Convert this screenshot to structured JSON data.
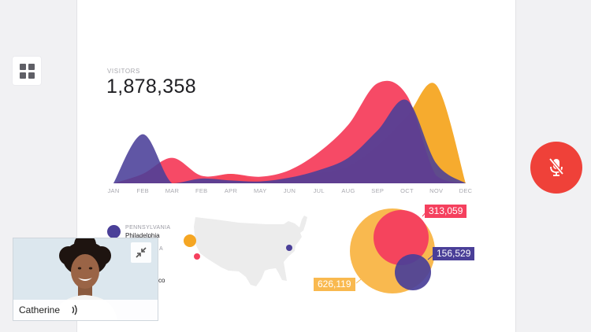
{
  "stats": {
    "label": "VISITORS",
    "value": "1,878,358"
  },
  "chart_data": {
    "type": "area",
    "categories": [
      "JAN",
      "FEB",
      "MAR",
      "FEB",
      "APR",
      "MAY",
      "JUN",
      "JUL",
      "AUG",
      "SEP",
      "OCT",
      "NOV",
      "DEC"
    ],
    "series": [
      {
        "color": "#f5a623",
        "values": [
          0,
          1,
          2,
          2,
          10,
          3,
          6,
          11,
          18,
          40,
          71,
          104,
          0
        ]
      },
      {
        "color": "#f5405e",
        "values": [
          0,
          10,
          27,
          8,
          10,
          7,
          14,
          33,
          62,
          106,
          93,
          8,
          0
        ]
      },
      {
        "color": "#4a3f98",
        "values": [
          0,
          52,
          0,
          5,
          3,
          2,
          6,
          14,
          27,
          56,
          88,
          21,
          0
        ]
      }
    ]
  },
  "legend": [
    {
      "state": "PENNSYLVANIA",
      "city": "Philadelphia",
      "color": "#4a3f98"
    },
    {
      "state": "A",
      "city": "",
      "color": "#f5a623"
    },
    {
      "state": "",
      "city": "co",
      "color": "#f5405e"
    }
  ],
  "bubbles": [
    {
      "label": "313,059",
      "color": "#f5405e"
    },
    {
      "label": "156,529",
      "color": "#4a3f98"
    },
    {
      "label": "626,119",
      "color": "#f9b94f"
    }
  ],
  "video": {
    "name": "Catherine"
  },
  "colors": {
    "mute": "#ef4139",
    "orange": "#f5a623",
    "red": "#f5405e",
    "purple": "#4a3f98"
  },
  "icons": {
    "grid": "grid-icon",
    "mic": "mic-muted-icon",
    "minimize": "minimize-icon",
    "speaking": "speaking-icon"
  }
}
